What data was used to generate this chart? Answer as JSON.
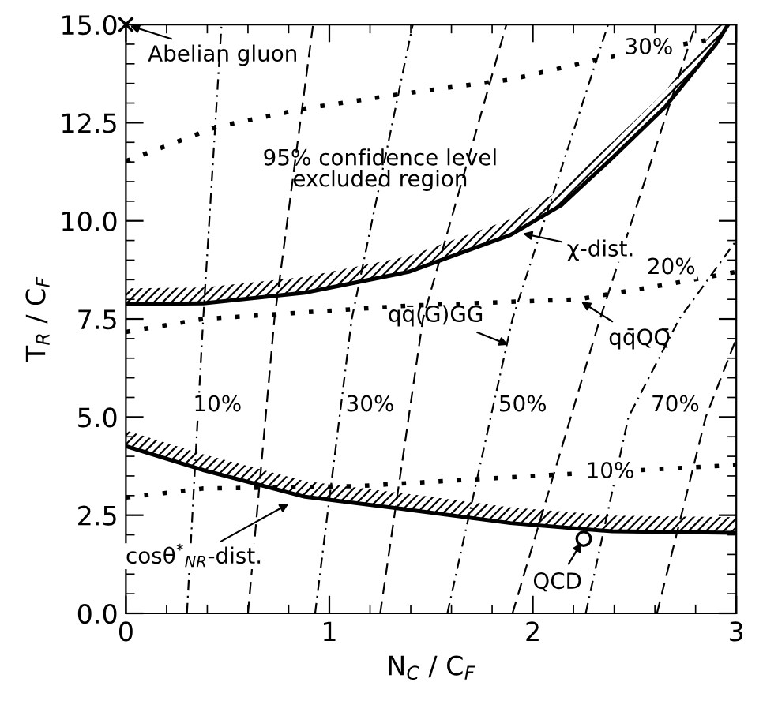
{
  "chart_data": {
    "type": "line",
    "xlabel": "N$_{C}$ / C$_{F}$",
    "ylabel": "T$_{R}$ / C$_{F}$",
    "xlim": [
      0,
      3
    ],
    "ylim": [
      0,
      15
    ],
    "xticks": [
      0,
      1,
      2,
      3
    ],
    "yticks": [
      {
        "value": 0,
        "label": "0.0"
      },
      2.5,
      {
        "value": 5,
        "label": "5.0"
      },
      7.5,
      {
        "value": 10,
        "label": "10.0"
      },
      12.5,
      {
        "value": 15,
        "label": "15.0"
      }
    ],
    "grid": false,
    "legend": false,
    "tick_labels": true,
    "series": [
      {
        "color": "#000000",
        "line_style": "solid",
        "x": [
          0,
          0.38,
          0.88,
          1.39,
          1.89,
          2.14,
          2.39,
          2.65,
          2.9,
          2.96
        ],
        "values": [
          7.88,
          7.9,
          8.17,
          8.7,
          9.64,
          10.4,
          11.6,
          12.9,
          14.5,
          15.0
        ]
      },
      {
        "color": "#000000",
        "line_style": "solid",
        "x": [
          0,
          0.38,
          0.88,
          1.39,
          1.89,
          2.39,
          3
        ],
        "values": [
          4.26,
          3.65,
          2.97,
          2.64,
          2.3,
          2.09,
          2.05
        ]
      },
      {
        "color": "#000000",
        "line_style": "dotted",
        "x": [
          0,
          0.45,
          0.88,
          1.39,
          1.89,
          2.34,
          2.85
        ],
        "values": [
          11.52,
          12.4,
          12.86,
          13.26,
          13.6,
          14.13,
          14.6
        ]
      },
      {
        "color": "#000000",
        "line_style": "dotted",
        "x": [
          0,
          0.38,
          1.39,
          2.22,
          2.65,
          3
        ],
        "values": [
          7.17,
          7.5,
          7.84,
          8.0,
          8.37,
          8.7
        ]
      },
      {
        "color": "#000000",
        "line_style": "dotted",
        "x": [
          0,
          0.38,
          1.13,
          2.14,
          3
        ],
        "values": [
          2.95,
          3.18,
          3.24,
          3.54,
          3.78
        ]
      },
      {
        "color": "#000000",
        "line_style": "dashdot",
        "x": [
          0.3,
          0.38,
          0.47
        ],
        "values": [
          0,
          7.5,
          15
        ]
      },
      {
        "color": "#000000",
        "line_style": "dashed",
        "x": [
          0.6,
          0.73,
          0.92
        ],
        "values": [
          0,
          7.5,
          15
        ]
      },
      {
        "color": "#000000",
        "line_style": "dashdot",
        "x": [
          0.93,
          1.11,
          1.41
        ],
        "values": [
          0,
          7.5,
          15
        ]
      },
      {
        "color": "#000000",
        "line_style": "dashed",
        "x": [
          1.25,
          1.46,
          1.87
        ],
        "values": [
          0,
          7.5,
          15
        ]
      },
      {
        "color": "#000000",
        "line_style": "dashdot",
        "x": [
          1.58,
          1.9,
          2.37
        ],
        "values": [
          0,
          7.5,
          15
        ]
      },
      {
        "color": "#000000",
        "line_style": "dashed",
        "x": [
          1.9,
          2.33,
          2.8
        ],
        "values": [
          0,
          7.5,
          15
        ]
      },
      {
        "color": "#000000",
        "line_style": "dashdot",
        "x": [
          2.26,
          2.47,
          2.72,
          3
        ],
        "values": [
          0,
          5,
          7.5,
          9.5
        ]
      },
      {
        "color": "#000000",
        "line_style": "dashed",
        "x": [
          2.61,
          2.85,
          3
        ],
        "values": [
          0,
          5,
          7.0
        ]
      },
      {
        "type": "scatter",
        "color": "#000000",
        "marker": "cross",
        "x": [
          0
        ],
        "values": [
          15
        ]
      },
      {
        "type": "scatter",
        "color": "#000000",
        "marker": "circle",
        "x": [
          2.25
        ],
        "values": [
          1.9
        ]
      }
    ],
    "annotations": [
      {
        "text": "Abelian gluon",
        "x": 0,
        "y": 15
      },
      "95% confidence level\nexcluded region",
      {
        "text": "χ-dist.",
        "x": 1.93,
        "y": 9.7
      },
      {
        "text": "qq̄(G)GG",
        "x": 1.9,
        "y": 6.8
      },
      {
        "text": "qq̄QQ̄",
        "x": 2.22,
        "y": 8.0
      },
      {
        "text": "cosθ$^{*}$$_{NR}$-dist.",
        "x": 0.82,
        "y": 2.85
      },
      {
        "text": "QCD",
        "x": 2.25,
        "y": 1.9
      },
      {
        "text": "10%",
        "x": 0.45,
        "y": 5.3
      },
      {
        "text": "30%",
        "x": 1.2,
        "y": 5.3
      },
      {
        "text": "50%",
        "x": 1.95,
        "y": 5.3
      },
      {
        "text": "70%",
        "x": 2.7,
        "y": 5.3
      },
      {
        "text": "30%",
        "x": 2.57,
        "y": 14.4
      },
      {
        "text": "20%",
        "x": 2.68,
        "y": 8.8
      },
      {
        "text": "10%",
        "x": 2.38,
        "y": 3.6
      }
    ]
  }
}
